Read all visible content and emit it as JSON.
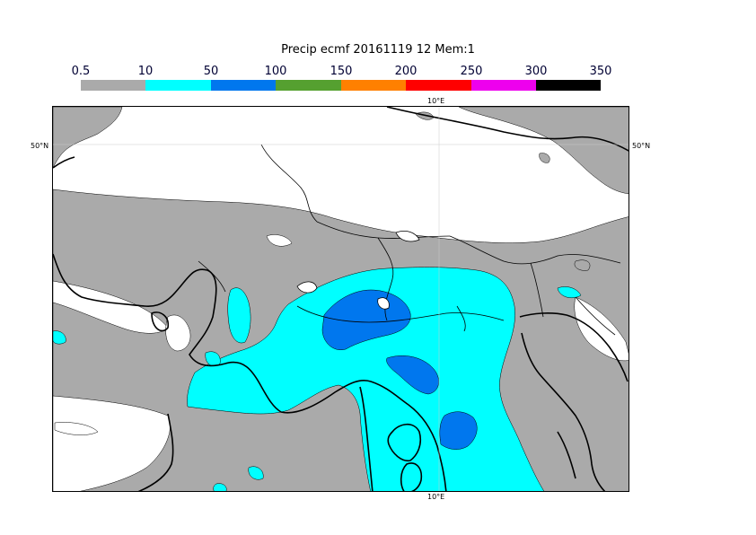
{
  "title": "Precip ecmf 20161119 12 Mem:1",
  "legend": {
    "labels": [
      "0.5",
      "10",
      "50",
      "100",
      "150",
      "200",
      "250",
      "300",
      "350"
    ],
    "colors": [
      "#aaaaaa",
      "#00ffff",
      "#0077ee",
      "#55a030",
      "#ff8000",
      "#ff0000",
      "#ee00ee",
      "#000000"
    ]
  },
  "map_labels": {
    "lon_top": "10°E",
    "lon_bottom": "10°E",
    "lat_left": "50°N",
    "lat_right": "50°N"
  },
  "fills": {
    "land": "#ffffff",
    "light": "#aaaaaa",
    "moderate": "#00ffff",
    "heavy": "#0077ee"
  }
}
